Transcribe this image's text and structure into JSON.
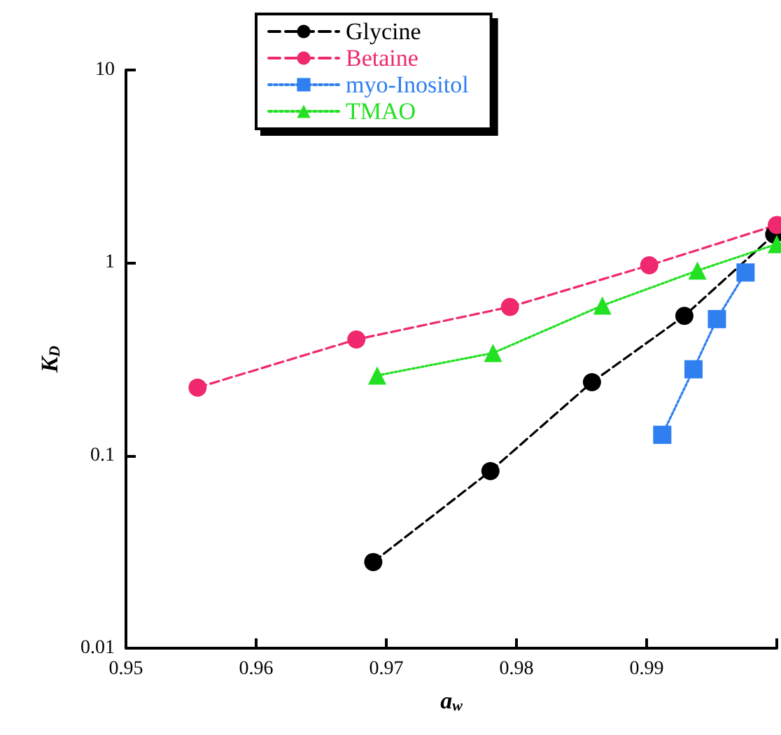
{
  "chart_data": {
    "type": "line",
    "xlabel": "a$_{w}$",
    "ylabel": "K$_{D}$",
    "log": "y",
    "grid": false,
    "legend": "top",
    "xlim": [
      0.95,
      1.0
    ],
    "xticks": [
      0.95,
      0.96,
      0.97,
      0.98,
      0.99,
      {
        "value": 1.0,
        "label": null
      }
    ],
    "ylim": [
      0.01,
      10
    ],
    "yticks": [
      0.01,
      0.1,
      1,
      10
    ],
    "series": [
      {
        "name": "Glycine",
        "color": "#000000",
        "marker": "circle",
        "line_style": "dashed",
        "x": [
          0.969,
          0.978,
          0.9858,
          0.9929,
          0.9998
        ],
        "values": [
          0.028,
          0.083,
          0.24,
          0.53,
          1.4
        ]
      },
      {
        "name": "Betaine",
        "color": "#f0286e",
        "marker": "circle",
        "line_style": "dashed",
        "x": [
          0.9555,
          0.9677,
          0.9795,
          0.9902,
          1.0
        ],
        "values": [
          0.225,
          0.4,
          0.59,
          0.97,
          1.57
        ]
      },
      {
        "name": "myo-Inositol",
        "color": "#2f7ff0",
        "marker": "square",
        "line_style": "dotted",
        "x": [
          0.9912,
          0.9936,
          0.9954,
          0.9976
        ],
        "values": [
          0.128,
          0.28,
          0.51,
          0.89
        ]
      },
      {
        "name": "TMAO",
        "color": "#22e022",
        "marker": "triangle",
        "line_style": "dotted",
        "x": [
          0.9693,
          0.9782,
          0.9866,
          0.9939,
          1.0
        ],
        "values": [
          0.26,
          0.34,
          0.6,
          0.91,
          1.25
        ]
      }
    ]
  }
}
